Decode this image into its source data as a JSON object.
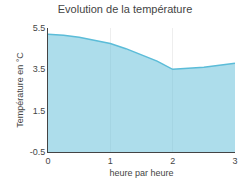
{
  "chart_data": {
    "type": "area",
    "title": "Evolution de la température",
    "xlabel": "heure par heure",
    "ylabel": "Température en °C",
    "x": [
      0,
      0.25,
      0.5,
      0.75,
      1.0,
      1.25,
      1.5,
      1.75,
      2.0,
      2.25,
      2.5,
      2.75,
      3.0
    ],
    "values": [
      5.2,
      5.15,
      5.05,
      4.9,
      4.75,
      4.5,
      4.2,
      3.9,
      3.5,
      3.55,
      3.6,
      3.7,
      3.8
    ],
    "color": "#5bbcd8",
    "xlim": [
      0,
      3
    ],
    "ylim": [
      -0.5,
      5.5
    ],
    "xticks": [
      0,
      1,
      2,
      3
    ],
    "yticks": [
      -0.5,
      1.5,
      3.5,
      5.5
    ],
    "grid": "x"
  }
}
